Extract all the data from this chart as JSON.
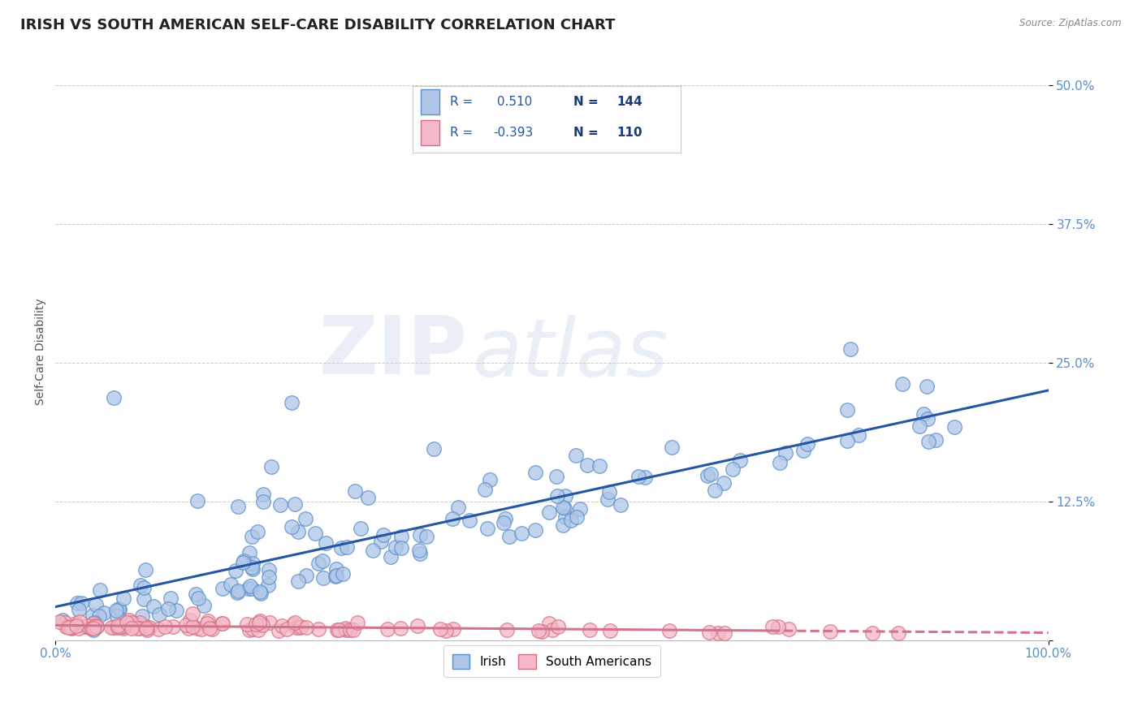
{
  "title": "IRISH VS SOUTH AMERICAN SELF-CARE DISABILITY CORRELATION CHART",
  "source": "Source: ZipAtlas.com",
  "ylabel": "Self-Care Disability",
  "xlim": [
    0.0,
    1.0
  ],
  "ylim": [
    0.0,
    0.52
  ],
  "ytick_positions": [
    0.0,
    0.125,
    0.25,
    0.375,
    0.5
  ],
  "yticklabels": [
    "",
    "12.5%",
    "25.0%",
    "37.5%",
    "50.0%"
  ],
  "irish_color": "#aec6e8",
  "irish_edge_color": "#5b8fc9",
  "south_color": "#f4b8c8",
  "south_edge_color": "#d47080",
  "irish_line_color": "#2456a4",
  "south_line_color": "#d4748a",
  "irish_R": 0.51,
  "irish_N": 144,
  "south_R": -0.393,
  "south_N": 110,
  "legend_label_irish": "Irish",
  "legend_label_south": "South Americans",
  "watermark_zip": "ZIP",
  "watermark_atlas": "atlas",
  "title_fontsize": 13,
  "label_fontsize": 10,
  "tick_fontsize": 11,
  "grid_color": "#cccccc",
  "background_color": "#ffffff",
  "tick_color": "#5b8fc9",
  "title_color": "#222222",
  "ylabel_color": "#555555",
  "source_color": "#888888",
  "box_border_color": "#cccccc",
  "rval_color": "#2456a4",
  "nval_color": "#1a3a7a"
}
